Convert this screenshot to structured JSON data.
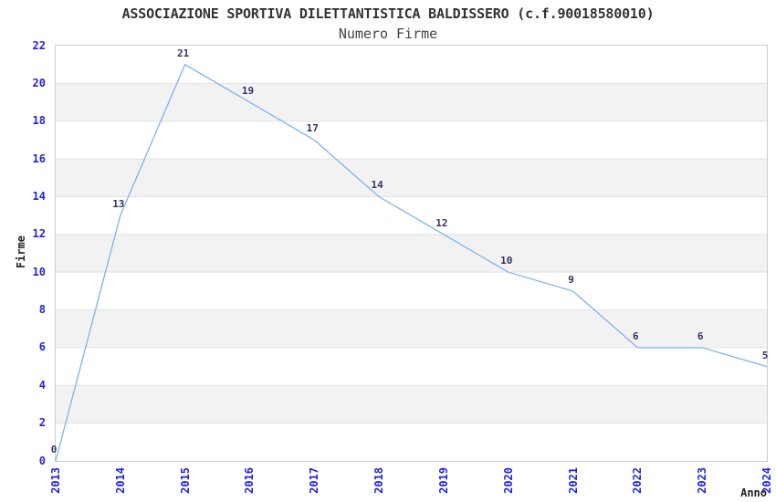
{
  "chart_data": {
    "type": "line",
    "title": "ASSOCIAZIONE SPORTIVA DILETTANTISTICA BALDISSERO (c.f.90018580010)",
    "subtitle": "Numero Firme",
    "xlabel": "Anno",
    "ylabel": "Firme",
    "categories": [
      "2013",
      "2014",
      "2015",
      "2016",
      "2017",
      "2018",
      "2019",
      "2020",
      "2021",
      "2022",
      "2023",
      "2024"
    ],
    "values": [
      0,
      13,
      21,
      19,
      17,
      14,
      12,
      10,
      9,
      6,
      6,
      5
    ],
    "yticks": [
      0,
      2,
      4,
      6,
      8,
      10,
      12,
      14,
      16,
      18,
      20,
      22
    ],
    "ylim": [
      0,
      22
    ],
    "grid": "horizontal-bands-alternating",
    "legend": "none",
    "data_labels": "shown above each point",
    "colors": {
      "line": "#82b2e8",
      "tick_label": "#2222dd",
      "data_label": "#333366",
      "title": "#333333",
      "subtitle": "#444444",
      "axis_label": "#222222",
      "band_light": "#ffffff",
      "band_dark": "#f2f2f2",
      "gridline": "#e2e2e2",
      "plot_border": "#cccccc"
    }
  }
}
